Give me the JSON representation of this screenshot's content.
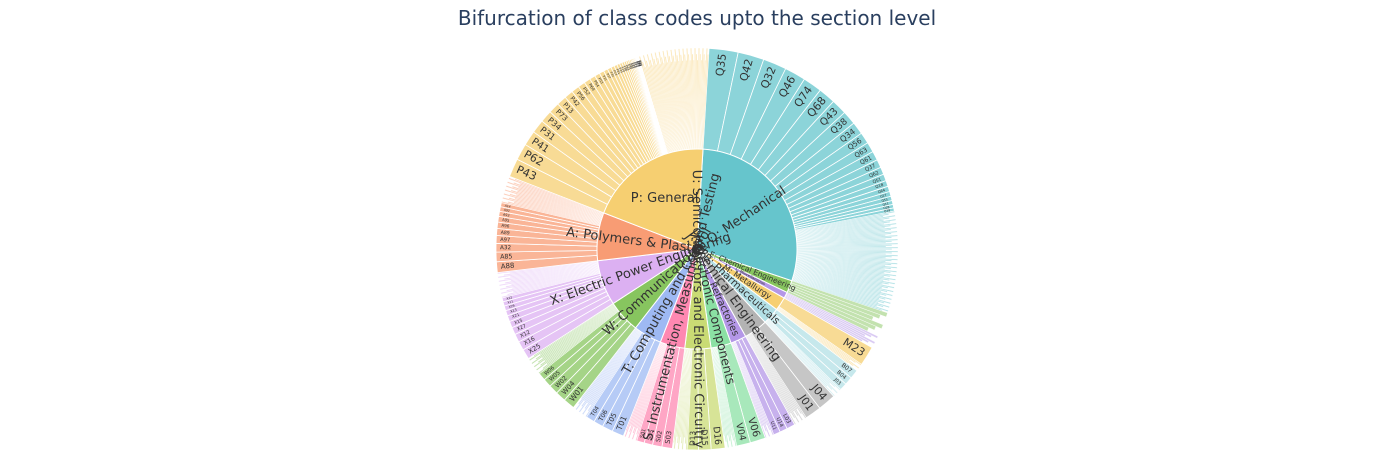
{
  "chart_data": {
    "type": "sunburst",
    "title": "Bifurcation of class codes upto the section level",
    "colors": {
      "P": "#f6cf71",
      "Q": "#66c5cc",
      "A": "#f89c74",
      "X": "#dcb0f2",
      "W": "#87c55f",
      "T": "#9eb9f3",
      "S": "#fe88b1",
      "U": "#c9db74",
      "V": "#8be0a4",
      "L": "#b497e7",
      "J": "#b3b3b3",
      "B": "#b3e0e6",
      "M": "#f6cf71",
      "E": "#87c55f"
    },
    "sections": [
      {
        "id": "Q",
        "label": "Q: Mechanical",
        "value": 32,
        "shown_children": [
          "Q35",
          "Q42",
          "Q32",
          "Q46",
          "Q74",
          "Q68",
          "Q43",
          "Q38",
          "Q34",
          "Q56",
          "Q63",
          "Q61",
          "Q37",
          "Q62",
          "Q51",
          "Q18",
          "Q64",
          "Q17",
          "Q53",
          "Q11",
          "Q28",
          "Q39"
        ]
      },
      {
        "id": "E",
        "label": "E: Chemical Engineering",
        "value": 2.2,
        "shown_children": []
      },
      {
        "id": "L",
        "label": "L: Miscellaneous",
        "value": 1.1,
        "shown_children": []
      },
      {
        "id": "M",
        "label": "M: Metallurgy",
        "value": 2.4,
        "shown_children": [
          "M23"
        ]
      },
      {
        "id": "B",
        "label": "B: Pharmaceuticals",
        "value": 3.0,
        "shown_children": [
          "B07",
          "B04",
          "J03"
        ]
      },
      {
        "id": "J",
        "label": "J: Chemical Engineering",
        "value": 4.2,
        "shown_children": [
          "J04",
          "J01"
        ]
      },
      {
        "id": "L2",
        "label": "L: Refractories",
        "value": 2.8,
        "shown_children": [
          "L03",
          "U14",
          "U11"
        ]
      },
      {
        "id": "V",
        "label": "V: Electronic Components",
        "value": 3.6,
        "shown_children": [
          "V06",
          "V04"
        ]
      },
      {
        "id": "U",
        "label": "U: Semiconductors and Electronic Circuitry",
        "value": 4.6,
        "shown_children": [
          "D16",
          "D15",
          "D13"
        ]
      },
      {
        "id": "S",
        "label": "S: Instrumentation, Measuring and Testing",
        "value": 4.4,
        "shown_children": [
          "S03",
          "S02",
          "S05",
          "S01"
        ]
      },
      {
        "id": "T",
        "label": "T: Computing and Control",
        "value": 5.0,
        "shown_children": [
          "T01",
          "T05",
          "T06",
          "T04"
        ]
      },
      {
        "id": "W",
        "label": "W: Communications",
        "value": 5.8,
        "shown_children": [
          "W01",
          "W04",
          "W02",
          "W05",
          "W06"
        ]
      },
      {
        "id": "X",
        "label": "X: Electric Power Engineering",
        "value": 8.0,
        "shown_children": [
          "X25",
          "X16",
          "X12",
          "X27",
          "X15",
          "X21",
          "X13",
          "X26",
          "X11",
          "X22"
        ]
      },
      {
        "id": "A",
        "label": "A: Polymers & Plastics",
        "value": 8.5,
        "shown_children": [
          "A88",
          "A85",
          "A32",
          "A97",
          "A89",
          "A96",
          "A95",
          "A93",
          "A92",
          "A14"
        ]
      },
      {
        "id": "P",
        "label": "P: General",
        "value": 22.0,
        "shown_children": [
          "P43",
          "P62",
          "P41",
          "P31",
          "P34",
          "P73",
          "P13",
          "P42",
          "P56",
          "P52",
          "P64",
          "P54",
          "P53",
          "P21",
          "P27",
          "P32",
          "P14",
          "P81",
          "P35",
          "P24",
          "P36",
          "P63",
          "P71",
          "P85",
          "P33",
          "P25",
          "P16",
          "P15",
          "P12",
          "P11",
          "P23",
          "P28",
          "P38",
          "P61",
          "P74"
        ]
      }
    ]
  }
}
